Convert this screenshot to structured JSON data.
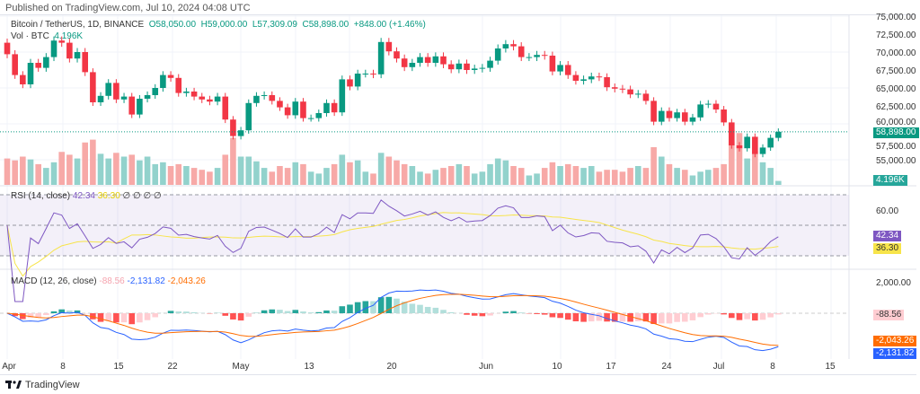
{
  "published": "Published on TradingView.com, Jul 10, 2024 04:08 UTC",
  "legend": {
    "symbol": "Bitcoin / TetherUS, 1D, BINANCE",
    "o": "O58,050.00",
    "h": "H59,000.00",
    "l": "L57,309.09",
    "c": "C58,898.00",
    "chg": "+848.00 (+1.46%)",
    "vol_label": "Vol · BTC",
    "vol_value": "4.196K"
  },
  "rsi": {
    "label": "RSI (14, close)",
    "value": "42.34",
    "ma": "36.30",
    "extra": "∅ ∅ ∅ ∅"
  },
  "macd": {
    "label": "MACD (12, 26, close)",
    "hist": "-88.56",
    "macd": "-2,131.82",
    "signal": "-2,043.26"
  },
  "tags": {
    "price": "58,898.00",
    "vol": "4.196K",
    "rsi": "42.34",
    "rsi_ma": "36.30",
    "hist": "-88.56",
    "signal": "-2,043.26",
    "macd": "-2,131.82"
  },
  "footer": {
    "brand": "TradingView"
  },
  "colors": {
    "up": "#089981",
    "down": "#f23645",
    "rsi": "#7e57c2",
    "rsi_ma": "#f7e44a",
    "macd": "#2962ff",
    "signal": "#ff6d00"
  },
  "chart_data": {
    "type": "candlestick",
    "start_date": "2024-04-01",
    "price_ticks": [
      "75,000.00",
      "72,500.00",
      "70,000.00",
      "67,500.00",
      "65,000.00",
      "62,500.00",
      "60,000.00",
      "57,500.00",
      "55,000.00"
    ],
    "rsi_ticks": [
      "60.00"
    ],
    "macd_ticks": [
      "2,000.00"
    ],
    "time_ticks": [
      "Apr",
      "8",
      "15",
      "22",
      "May",
      "13",
      "20",
      "Jun",
      "10",
      "17",
      "24",
      "Jul",
      "8",
      "15"
    ],
    "first_open": 71300,
    "closes": [
      69700,
      66800,
      65500,
      68500,
      67800,
      69300,
      71600,
      71300,
      69100,
      70000,
      67200,
      63000,
      63900,
      65700,
      63400,
      63800,
      61300,
      63500,
      64000,
      65000,
      66800,
      66400,
      64300,
      64500,
      63800,
      63400,
      63100,
      63800,
      60600,
      58300,
      59100,
      62900,
      63900,
      64000,
      63200,
      62300,
      61200,
      63100,
      60800,
      60800,
      61500,
      62900,
      61600,
      66200,
      65200,
      67000,
      67000,
      66900,
      71400,
      70100,
      69100,
      67900,
      68500,
      69300,
      68500,
      69400,
      68300,
      67600,
      68400,
      67500,
      67700,
      67800,
      68800,
      70500,
      71100,
      70800,
      69300,
      69300,
      69600,
      69500,
      67300,
      68200,
      66800,
      66000,
      66200,
      66600,
      66500,
      65100,
      64900,
      64800,
      64100,
      64200,
      63200,
      60300,
      61800,
      60800,
      61600,
      60300,
      60900,
      62700,
      62800,
      62000,
      60200,
      57000,
      56600,
      58200,
      55800,
      56700,
      58050,
      58898
    ],
    "volumes_k": [
      28,
      26,
      30,
      27,
      22,
      18,
      24,
      35,
      32,
      28,
      45,
      48,
      33,
      28,
      34,
      30,
      32,
      26,
      30,
      22,
      24,
      20,
      22,
      20,
      18,
      16,
      14,
      18,
      32,
      50,
      30,
      30,
      25,
      18,
      14,
      20,
      18,
      24,
      22,
      14,
      12,
      18,
      22,
      32,
      24,
      26,
      14,
      12,
      34,
      30,
      26,
      22,
      20,
      14,
      12,
      16,
      18,
      20,
      22,
      20,
      12,
      14,
      22,
      28,
      26,
      20,
      18,
      10,
      12,
      18,
      24,
      20,
      22,
      20,
      18,
      20,
      14,
      16,
      16,
      14,
      18,
      20,
      18,
      40,
      30,
      22,
      18,
      16,
      10,
      14,
      16,
      18,
      22,
      46,
      55,
      28,
      36,
      24,
      18,
      4.196
    ]
  }
}
